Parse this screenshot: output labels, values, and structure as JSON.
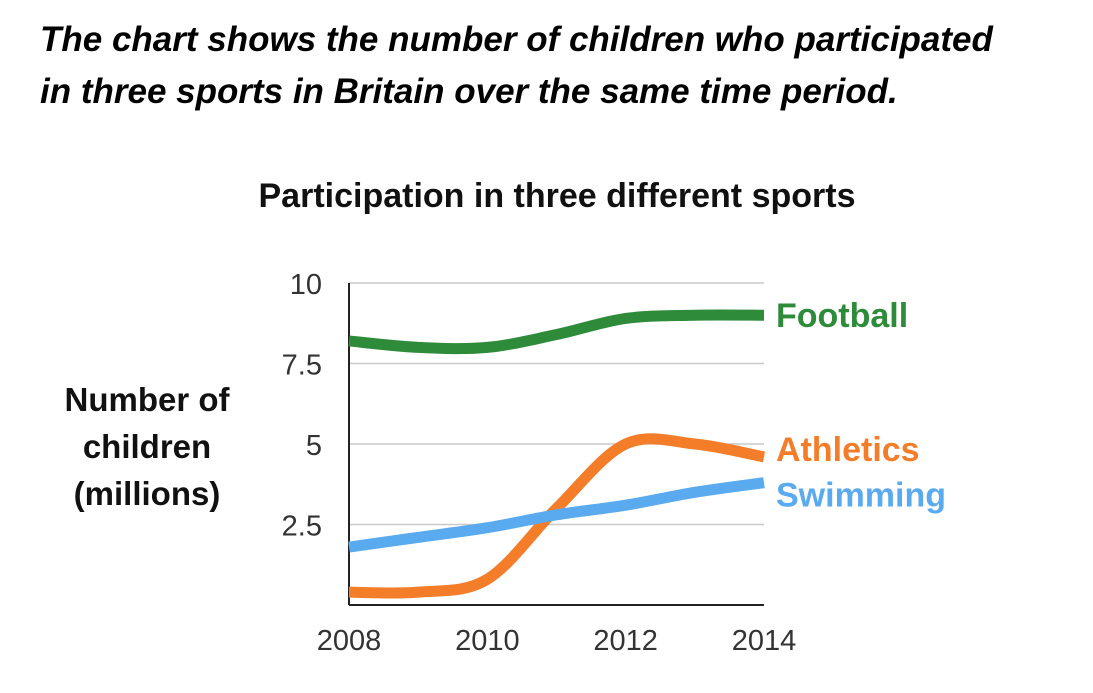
{
  "prompt": {
    "line1": "The chart shows the number of children who participated",
    "line2": "in three sports in Britain over the same time period."
  },
  "chart_data": {
    "type": "line",
    "title": "Participation in three different sports",
    "ylabel_lines": [
      "Number of",
      "children",
      "(millions)"
    ],
    "xlabel": "",
    "x_ticks": [
      "2008",
      "2010",
      "2012",
      "2014"
    ],
    "y_ticks": [
      "2.5",
      "5",
      "7.5",
      "10"
    ],
    "xlim": [
      2008,
      2014
    ],
    "ylim": [
      0,
      10
    ],
    "grid": true,
    "legend": "right-end labels",
    "series": [
      {
        "name": "Football",
        "color": "#2e8b3a",
        "x": [
          2008,
          2009,
          2010,
          2011,
          2012,
          2013,
          2014
        ],
        "values": [
          8.2,
          8.0,
          8.0,
          8.4,
          8.9,
          9.0,
          9.0
        ]
      },
      {
        "name": "Athletics",
        "color": "#f47d2a",
        "x": [
          2008,
          2009,
          2010,
          2011,
          2012,
          2013,
          2014
        ],
        "values": [
          0.4,
          0.4,
          0.8,
          3.0,
          5.0,
          5.0,
          4.6
        ]
      },
      {
        "name": "Swimming",
        "color": "#5aaaf0",
        "x": [
          2008,
          2009,
          2010,
          2011,
          2012,
          2013,
          2014
        ],
        "values": [
          1.8,
          2.1,
          2.4,
          2.8,
          3.1,
          3.5,
          3.8
        ]
      }
    ]
  }
}
